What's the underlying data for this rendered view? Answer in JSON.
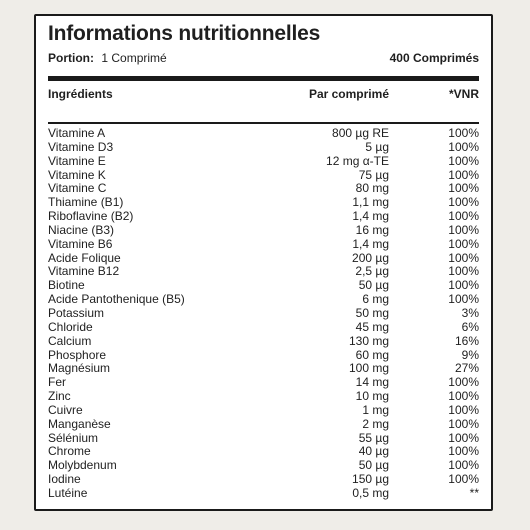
{
  "title": "Informations nutritionnelles",
  "portion": {
    "label": "Portion:",
    "value": "1 Comprimé",
    "count": "400 Comprimés"
  },
  "columns": {
    "name": "Ingrédients",
    "amount": "Par comprimé",
    "vnr": "*VNR"
  },
  "rows": [
    {
      "name": "Vitamine A",
      "amount": "800 µg RE",
      "vnr": "100%"
    },
    {
      "name": "Vitamine D3",
      "amount": "5 µg",
      "vnr": "100%"
    },
    {
      "name": "Vitamine E",
      "amount": "12 mg α-TE",
      "vnr": "100%"
    },
    {
      "name": "Vitamine K",
      "amount": "75 µg",
      "vnr": "100%"
    },
    {
      "name": "Vitamine C",
      "amount": "80 mg",
      "vnr": "100%"
    },
    {
      "name": "Thiamine (B1)",
      "amount": "1,1 mg",
      "vnr": "100%"
    },
    {
      "name": "Riboflavine (B2)",
      "amount": "1,4 mg",
      "vnr": "100%"
    },
    {
      "name": "Niacine (B3)",
      "amount": "16 mg",
      "vnr": "100%"
    },
    {
      "name": "Vitamine B6",
      "amount": "1,4 mg",
      "vnr": "100%"
    },
    {
      "name": "Acide Folique",
      "amount": "200 µg",
      "vnr": "100%"
    },
    {
      "name": "Vitamine B12",
      "amount": "2,5 µg",
      "vnr": "100%"
    },
    {
      "name": "Biotine",
      "amount": "50 µg",
      "vnr": "100%"
    },
    {
      "name": "Acide Pantothenique (B5)",
      "amount": "6 mg",
      "vnr": "100%"
    },
    {
      "name": "Potassium",
      "amount": "50 mg",
      "vnr": "3%"
    },
    {
      "name": "Chloride",
      "amount": "45 mg",
      "vnr": "6%"
    },
    {
      "name": "Calcium",
      "amount": "130 mg",
      "vnr": "16%"
    },
    {
      "name": "Phosphore",
      "amount": "60 mg",
      "vnr": "9%"
    },
    {
      "name": "Magnésium",
      "amount": "100 mg",
      "vnr": "27%"
    },
    {
      "name": "Fer",
      "amount": "14 mg",
      "vnr": "100%"
    },
    {
      "name": "Zinc",
      "amount": "10 mg",
      "vnr": "100%"
    },
    {
      "name": "Cuivre",
      "amount": "1 mg",
      "vnr": "100%"
    },
    {
      "name": "Manganèse",
      "amount": "2 mg",
      "vnr": "100%"
    },
    {
      "name": "Sélénium",
      "amount": "55 µg",
      "vnr": "100%"
    },
    {
      "name": "Chrome",
      "amount": "40 µg",
      "vnr": "100%"
    },
    {
      "name": "Molybdenum",
      "amount": "50 µg",
      "vnr": "100%"
    },
    {
      "name": "Iodine",
      "amount": "150 µg",
      "vnr": "100%"
    },
    {
      "name": "Lutéine",
      "amount": "0,5 mg",
      "vnr": "**"
    }
  ]
}
